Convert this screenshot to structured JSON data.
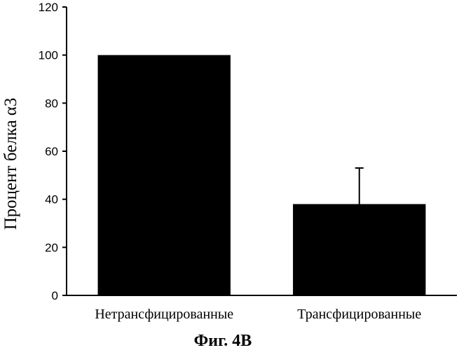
{
  "chart_data": {
    "type": "bar",
    "categories": [
      "Нетрансфицированные",
      "Трансфицированные"
    ],
    "values": [
      100,
      38
    ],
    "error": [
      0,
      15
    ],
    "ylabel": "Процент белка α3",
    "xlabel": "",
    "ylim": [
      0,
      120
    ],
    "yticks": [
      0,
      20,
      40,
      60,
      80,
      100,
      120
    ],
    "grid": false,
    "bar_color": "#000000"
  },
  "caption": "Фиг. 4В"
}
